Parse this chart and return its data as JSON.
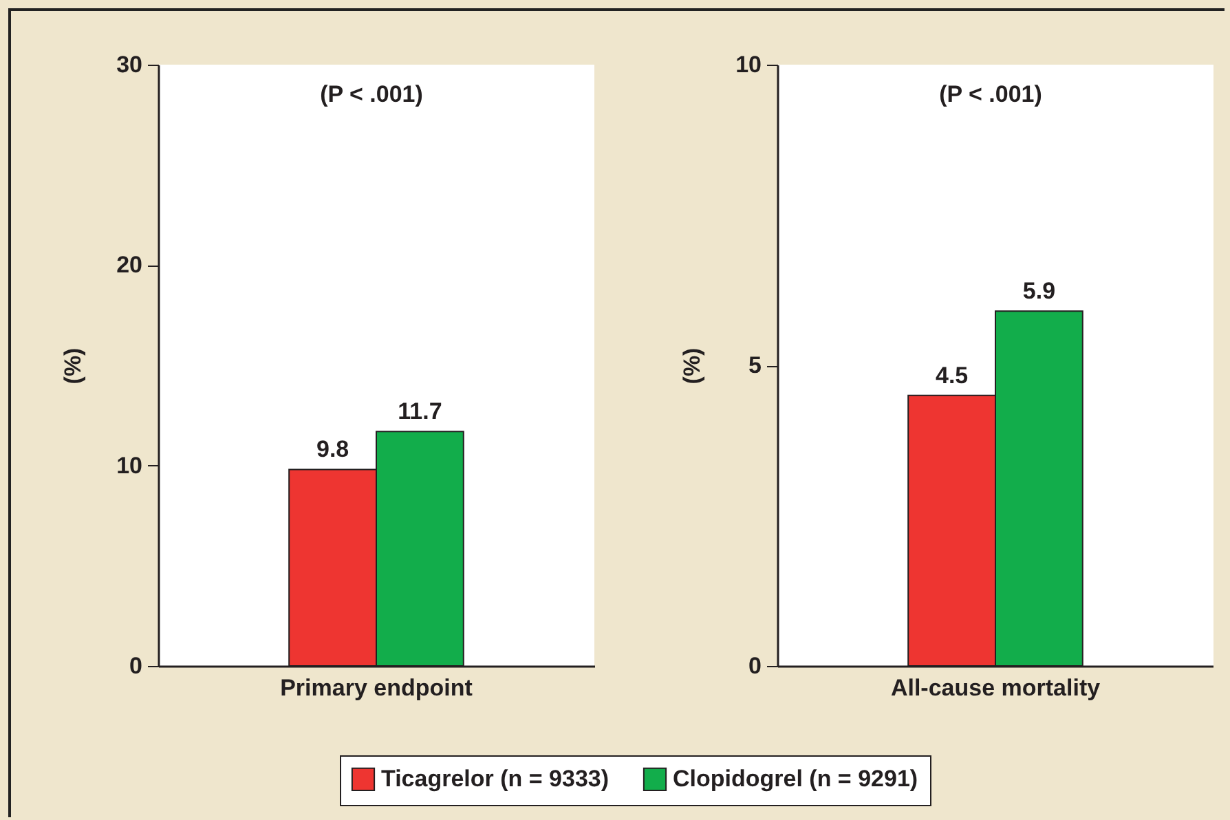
{
  "chart_data": [
    {
      "type": "bar",
      "categories": [
        "Primary endpoint"
      ],
      "ylabel": "(%)",
      "ylim": [
        0,
        30
      ],
      "yticks": [
        0,
        10,
        20,
        30
      ],
      "data_labels": true,
      "legend": "bottom",
      "annotations": [
        "(P < .001)"
      ],
      "series": [
        {
          "name": "Ticagrelor (n = 9333)",
          "color": "#ee3531",
          "values": [
            9.8
          ]
        },
        {
          "name": "Clopidogrel (n = 9291)",
          "color": "#12ad4b",
          "values": [
            11.7
          ]
        }
      ]
    },
    {
      "type": "bar",
      "categories": [
        "All-cause mortality"
      ],
      "ylabel": "(%)",
      "ylim": [
        0,
        10
      ],
      "yticks": [
        0,
        5,
        10
      ],
      "data_labels": true,
      "legend": "bottom",
      "annotations": [
        "(P < .001)"
      ],
      "series": [
        {
          "name": "Ticagrelor (n = 9333)",
          "color": "#ee3531",
          "values": [
            4.5
          ]
        },
        {
          "name": "Clopidogrel (n = 9291)",
          "color": "#12ad4b",
          "values": [
            5.9
          ]
        }
      ]
    }
  ]
}
